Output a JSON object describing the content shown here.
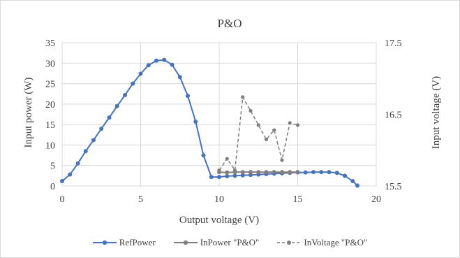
{
  "chart_data": {
    "type": "line",
    "title": "P&O",
    "xlabel": "Output voltage  (V)",
    "ylabel_left": "Input power  (W)",
    "ylabel_right": "Input voltage  (V)",
    "xlim": [
      0,
      20
    ],
    "ylim_left": [
      0,
      35
    ],
    "ylim_right": [
      15.5,
      17.5
    ],
    "x_ticks": [
      0,
      5,
      10,
      15,
      20
    ],
    "y_ticks_left": [
      0,
      5,
      10,
      15,
      20,
      25,
      30,
      35
    ],
    "y_ticks_right": [
      15.5,
      16.5,
      17.5
    ],
    "grid": true,
    "legend_position": "bottom",
    "series": [
      {
        "name": "RefPower",
        "axis": "left",
        "color": "#4472c4",
        "line": "solid",
        "points": [
          [
            0,
            1.2
          ],
          [
            0.5,
            2.8
          ],
          [
            1,
            5.5
          ],
          [
            1.5,
            8.5
          ],
          [
            2,
            11.2
          ],
          [
            2.5,
            14
          ],
          [
            3,
            16.7
          ],
          [
            3.5,
            19.5
          ],
          [
            4,
            22.2
          ],
          [
            4.5,
            25
          ],
          [
            5,
            27.4
          ],
          [
            5.5,
            29.5
          ],
          [
            6,
            30.6
          ],
          [
            6.5,
            30.8
          ],
          [
            7,
            29.6
          ],
          [
            7.5,
            26.6
          ],
          [
            8,
            22
          ],
          [
            8.5,
            15.7
          ],
          [
            9,
            7.5
          ],
          [
            9.5,
            2.2
          ],
          [
            10,
            2.2
          ],
          [
            10.5,
            2.4
          ],
          [
            11,
            2.5
          ],
          [
            11.5,
            2.6
          ],
          [
            12,
            2.7
          ],
          [
            12.5,
            2.8
          ],
          [
            13,
            2.9
          ],
          [
            13.5,
            3
          ],
          [
            14,
            3.1
          ],
          [
            14.5,
            3.2
          ],
          [
            15,
            3.3
          ],
          [
            15.5,
            3.3
          ],
          [
            16,
            3.4
          ],
          [
            16.5,
            3.4
          ],
          [
            17,
            3.4
          ],
          [
            17.5,
            3.2
          ],
          [
            18,
            2.5
          ],
          [
            18.5,
            1.2
          ],
          [
            18.8,
            0.1
          ]
        ]
      },
      {
        "name": "InPower \"P&O\"",
        "axis": "left",
        "color": "#7f7f7f",
        "line": "solid",
        "points": [
          [
            10,
            3.4
          ],
          [
            10.5,
            3.3
          ],
          [
            11,
            3.4
          ],
          [
            11.5,
            3.4
          ],
          [
            12,
            3.4
          ],
          [
            12.5,
            3.4
          ],
          [
            13,
            3.4
          ],
          [
            13.5,
            3.4
          ],
          [
            14,
            3.4
          ],
          [
            14.5,
            3.4
          ],
          [
            15,
            3.4
          ]
        ]
      },
      {
        "name": "InVoltage \"P&O\"",
        "axis": "right",
        "color": "#7f7f7f",
        "line": "dashed",
        "points": [
          [
            10,
            15.72
          ],
          [
            10.5,
            15.88
          ],
          [
            11,
            15.72
          ],
          [
            11.5,
            16.74
          ],
          [
            12,
            16.55
          ],
          [
            12.5,
            16.35
          ],
          [
            13,
            16.15
          ],
          [
            13.5,
            16.28
          ],
          [
            14,
            15.86
          ],
          [
            14.5,
            16.38
          ],
          [
            15,
            16.35
          ]
        ]
      }
    ]
  }
}
